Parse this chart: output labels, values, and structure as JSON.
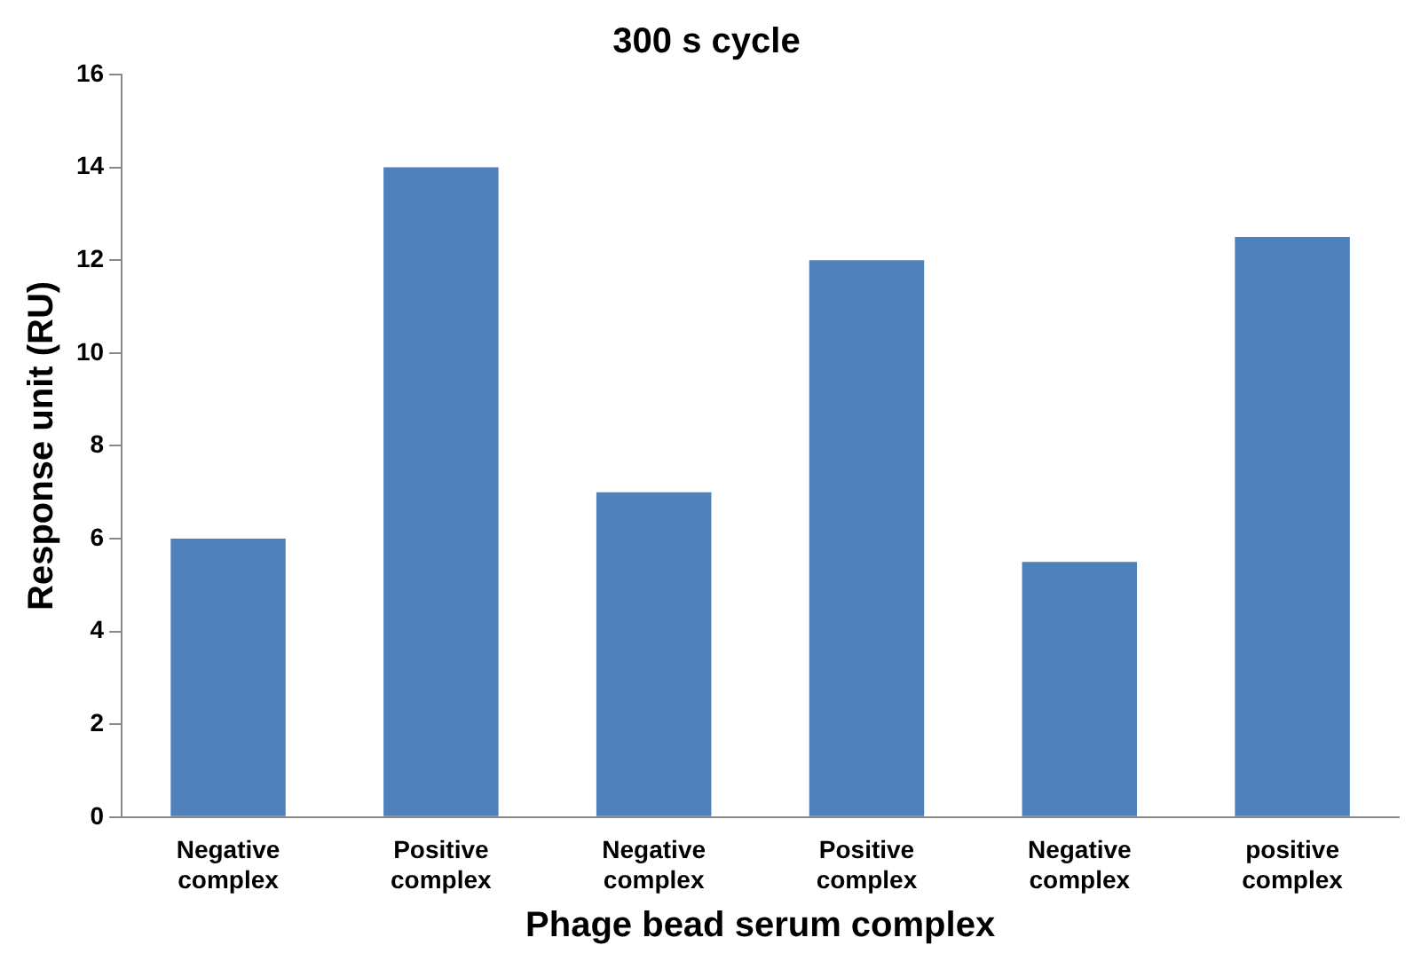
{
  "chart_data": {
    "type": "bar",
    "title": "300 s cycle",
    "xlabel": "Phage bead serum complex",
    "ylabel": "Response unit (RU)",
    "categories": [
      "Negative complex",
      "Positive complex",
      "Negative complex",
      "Positive complex",
      "Negative complex",
      "positive complex"
    ],
    "values": [
      6,
      14,
      7,
      12,
      5.5,
      12.5
    ],
    "color": "#4f81bd",
    "ylim": [
      0,
      16
    ],
    "yticks": [
      0,
      2,
      4,
      6,
      8,
      10,
      12,
      14,
      16
    ],
    "grid": false,
    "legend": false
  }
}
